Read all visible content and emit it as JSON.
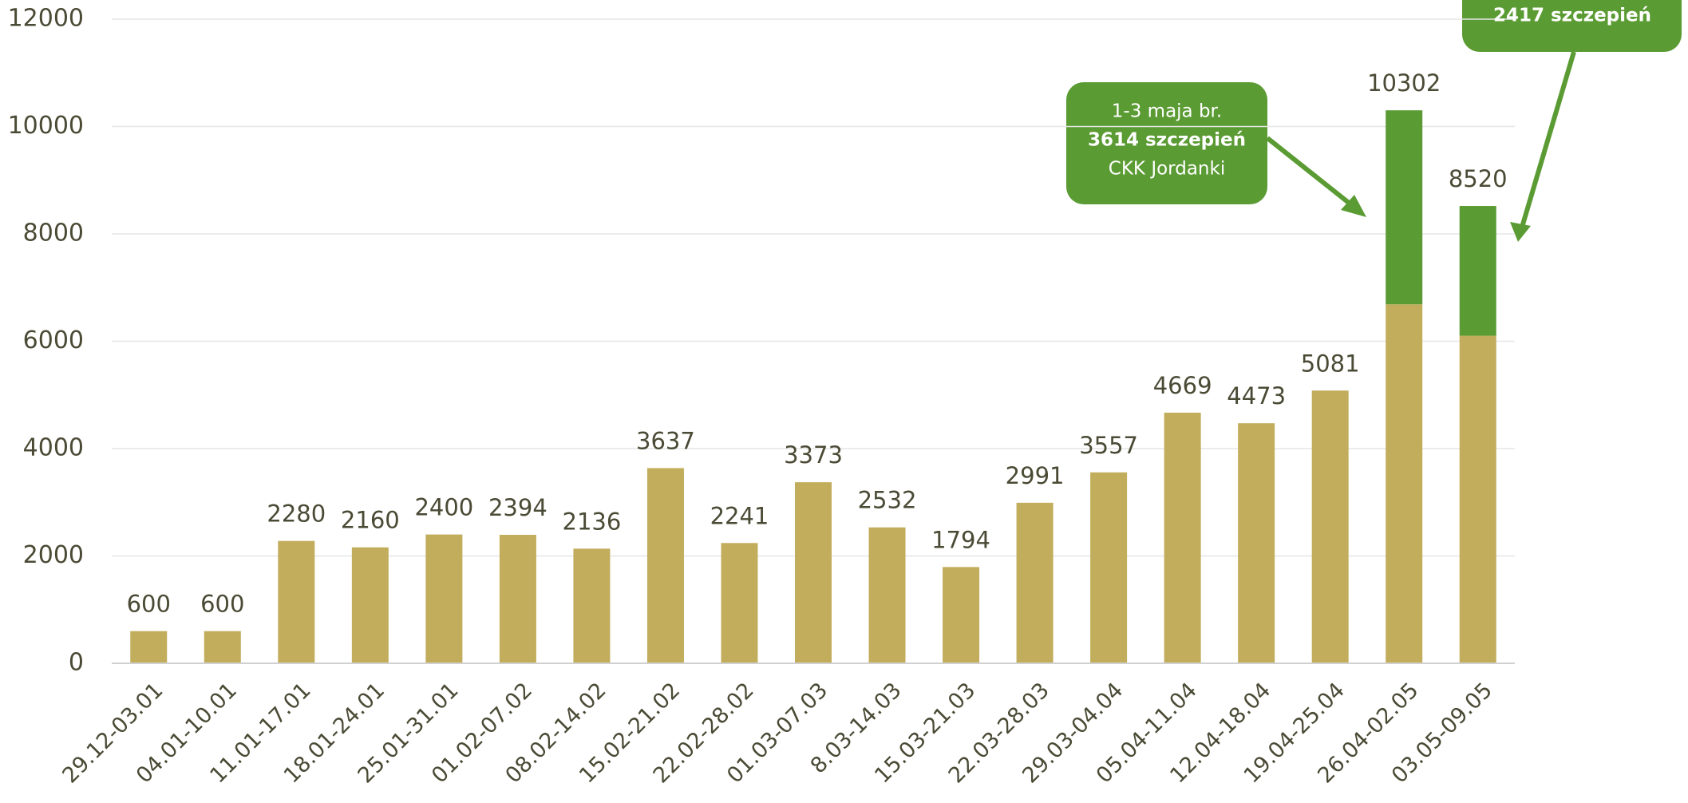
{
  "chart_data": {
    "type": "stacked_bar",
    "categories": [
      "29.12-03.01",
      "04.01-10.01",
      "11.01-17.01",
      "18.01-24.01",
      "25.01-31.01",
      "01.02-07.02",
      "08.02-14.02",
      "15.02-21.02",
      "22.02-28.02",
      "01.03-07.03",
      "8.03-14.03",
      "15.03-21.03",
      "22.03-28.03",
      "29.03-04.04",
      "05.04-11.04",
      "12.04-18.04",
      "19.04-25.04",
      "26.04-02.05",
      "03.05-09.05"
    ],
    "series": [
      {
        "color": "#c2ad5c",
        "values": [
          600,
          600,
          2280,
          2160,
          2400,
          2394,
          2136,
          3637,
          2241,
          3373,
          2532,
          1794,
          2991,
          3557,
          4669,
          4473,
          5081,
          6688,
          6103
        ]
      },
      {
        "color": "#5b9b33",
        "values": [
          null,
          null,
          null,
          null,
          null,
          null,
          null,
          null,
          null,
          null,
          null,
          null,
          null,
          null,
          null,
          null,
          null,
          3614,
          2417
        ]
      }
    ],
    "totals": [
      600,
      600,
      2280,
      2160,
      2400,
      2394,
      2136,
      3637,
      2241,
      3373,
      2532,
      1794,
      2991,
      3557,
      4669,
      4473,
      5081,
      10302,
      8520
    ],
    "ylim": [
      0,
      12000
    ],
    "yticks": [
      0,
      2000,
      4000,
      6000,
      8000,
      10000,
      12000
    ],
    "grid": true,
    "annotations": [
      {
        "lines": [
          "1-3 maja br.",
          "3614 szczepień",
          "CKK Jordanki"
        ]
      },
      {
        "lines": [
          "2417 szczepień"
        ]
      }
    ]
  }
}
